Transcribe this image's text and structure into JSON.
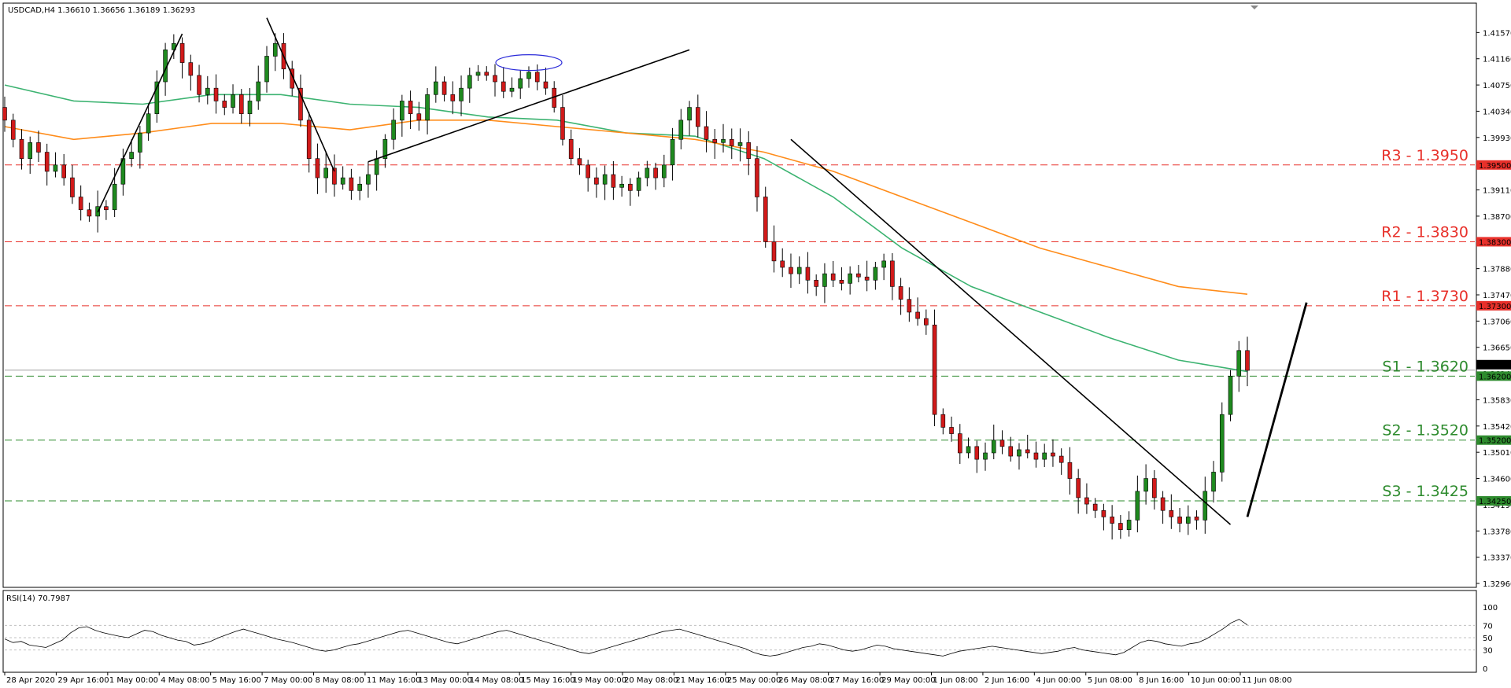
{
  "header": {
    "symbol_info": "USDCAD,H4  1.36610 1.36656 1.36189 1.36293",
    "rsi_label": "RSI(14) 70.7987"
  },
  "colors": {
    "bull_candle": "#1f8a1f",
    "bear_candle": "#d11a1a",
    "ma_fast": "#3cb371",
    "ma_slow": "#ff8c1a",
    "resistance": "#e8302a",
    "support": "#2e8b2e",
    "trendline": "#000000",
    "highlight_ellipse": "#2b2bd9",
    "current_price_line": "#a0a0a0"
  },
  "chart_data": {
    "type": "candlestick",
    "symbol": "USDCAD",
    "timeframe": "H4",
    "price_axis": {
      "ticks": [
        "1.41570",
        "1.41160",
        "1.40750",
        "1.40340",
        "1.39930",
        "1.39520",
        "1.39110",
        "1.38700",
        "1.38290",
        "1.37880",
        "1.37470",
        "1.37060",
        "1.36650",
        "1.36240",
        "1.35830",
        "1.35420",
        "1.35010",
        "1.34600",
        "1.34190",
        "1.33780",
        "1.33370",
        "1.32960"
      ],
      "range": [
        1.3296,
        1.4198
      ]
    },
    "time_axis": {
      "labels": [
        "28 Apr 2020",
        "29 Apr 16:00",
        "1 May 00:00",
        "4 May 08:00",
        "5 May 16:00",
        "7 May 00:00",
        "8 May 08:00",
        "11 May 16:00",
        "13 May 00:00",
        "14 May 08:00",
        "15 May 16:00",
        "19 May 00:00",
        "20 May 08:00",
        "21 May 16:00",
        "25 May 00:00",
        "26 May 08:00",
        "27 May 16:00",
        "29 May 00:00",
        "1 Jun 08:00",
        "2 Jun 16:00",
        "4 Jun 00:00",
        "5 Jun 08:00",
        "8 Jun 16:00",
        "10 Jun 00:00",
        "11 Jun 08:00"
      ]
    },
    "levels": [
      {
        "name": "R3 - 1.3950",
        "price": 1.395,
        "kind": "resistance",
        "tag": "1.39500"
      },
      {
        "name": "R2 - 1.3830",
        "price": 1.383,
        "kind": "resistance",
        "tag": "1.38300"
      },
      {
        "name": "R1 - 1.3730",
        "price": 1.373,
        "kind": "resistance",
        "tag": "1.37300"
      },
      {
        "name": "S1 - 1.3620",
        "price": 1.362,
        "kind": "support",
        "tag": "1.36200"
      },
      {
        "name": "S2 - 1.3520",
        "price": 1.352,
        "kind": "support",
        "tag": "1.35200"
      },
      {
        "name": "S3 - 1.3425",
        "price": 1.3425,
        "kind": "support",
        "tag": "1.34250"
      }
    ],
    "current_price": {
      "price": 1.36293,
      "tag": "1.36293"
    },
    "candles_close": [
      1.402,
      1.399,
      1.396,
      1.3985,
      1.397,
      1.394,
      1.395,
      1.393,
      1.39,
      1.388,
      1.387,
      1.3885,
      1.388,
      1.392,
      1.396,
      1.397,
      1.4,
      1.403,
      1.408,
      1.413,
      1.414,
      1.411,
      1.409,
      1.406,
      1.407,
      1.405,
      1.404,
      1.406,
      1.403,
      1.405,
      1.408,
      1.412,
      1.414,
      1.41,
      1.407,
      1.402,
      1.396,
      1.393,
      1.3945,
      1.392,
      1.393,
      1.391,
      1.392,
      1.3935,
      1.396,
      1.399,
      1.402,
      1.405,
      1.403,
      1.402,
      1.406,
      1.408,
      1.406,
      1.405,
      1.407,
      1.409,
      1.4095,
      1.409,
      1.408,
      1.4065,
      1.407,
      1.4085,
      1.4095,
      1.408,
      1.407,
      1.404,
      1.399,
      1.396,
      1.395,
      1.393,
      1.392,
      1.3935,
      1.3915,
      1.392,
      1.391,
      1.393,
      1.3945,
      1.393,
      1.395,
      1.399,
      1.402,
      1.404,
      1.401,
      1.399,
      1.3985,
      1.399,
      1.398,
      1.3985,
      1.396,
      1.39,
      1.383,
      1.38,
      1.379,
      1.378,
      1.379,
      1.377,
      1.376,
      1.378,
      1.377,
      1.3765,
      1.378,
      1.3775,
      1.377,
      1.379,
      1.38,
      1.376,
      1.374,
      1.372,
      1.371,
      1.37,
      1.356,
      1.354,
      1.353,
      1.35,
      1.351,
      1.349,
      1.35,
      1.352,
      1.351,
      1.3495,
      1.3505,
      1.35,
      1.349,
      1.35,
      1.3495,
      1.3485,
      1.346,
      1.343,
      1.342,
      1.341,
      1.34,
      1.339,
      1.338,
      1.3395,
      1.344,
      1.346,
      1.343,
      1.341,
      1.34,
      1.339,
      1.34,
      1.3395,
      1.344,
      1.347,
      1.356,
      1.362,
      1.366,
      1.3629
    ],
    "moving_averages": [
      {
        "period_role": "fast",
        "color": "#3cb371",
        "points": [
          1.4075,
          1.405,
          1.4045,
          1.406,
          1.406,
          1.4045,
          1.404,
          1.4025,
          1.402,
          1.4,
          1.3995,
          1.396,
          1.39,
          1.382,
          1.376,
          1.372,
          1.368,
          1.3645,
          1.3627
        ]
      },
      {
        "period_role": "slow",
        "color": "#ff8c1a",
        "points": [
          1.401,
          1.399,
          1.4,
          1.4015,
          1.4015,
          1.4005,
          1.402,
          1.402,
          1.401,
          1.4,
          1.399,
          1.397,
          1.394,
          1.39,
          1.386,
          1.382,
          1.379,
          1.376,
          1.3748
        ]
      }
    ],
    "rsi": {
      "period": 14,
      "value": 70.7987,
      "levels": [
        70,
        50,
        30
      ],
      "scale_ticks": [
        "100",
        "70",
        "50",
        "30",
        "0"
      ],
      "points": [
        48,
        42,
        44,
        38,
        36,
        34,
        40,
        46,
        58,
        66,
        68,
        62,
        58,
        55,
        52,
        50,
        56,
        62,
        60,
        54,
        50,
        46,
        44,
        38,
        40,
        44,
        50,
        55,
        60,
        64,
        60,
        56,
        52,
        48,
        45,
        42,
        38,
        34,
        30,
        28,
        30,
        34,
        38,
        40,
        44,
        48,
        52,
        56,
        60,
        62,
        58,
        54,
        50,
        46,
        42,
        40,
        44,
        48,
        52,
        56,
        60,
        62,
        58,
        54,
        50,
        46,
        42,
        38,
        34,
        30,
        26,
        24,
        28,
        32,
        36,
        40,
        44,
        48,
        52,
        56,
        60,
        62,
        64,
        60,
        56,
        52,
        48,
        44,
        40,
        36,
        32,
        26,
        22,
        20,
        22,
        26,
        30,
        34,
        36,
        40,
        38,
        34,
        30,
        28,
        30,
        34,
        38,
        36,
        32,
        30,
        28,
        26,
        24,
        22,
        20,
        24,
        28,
        30,
        32,
        34,
        36,
        34,
        32,
        30,
        28,
        26,
        24,
        26,
        28,
        32,
        34,
        30,
        28,
        26,
        24,
        22,
        26,
        34,
        42,
        46,
        44,
        40,
        38,
        36,
        40,
        42,
        48,
        56,
        64,
        74,
        80,
        70.8
      ]
    },
    "annotations": [
      "uptrend-line-1",
      "downtrend-line-1",
      "uptrend-line-2",
      "highlight-ellipse",
      "downtrend-line-2",
      "uptrend-line-3"
    ]
  }
}
